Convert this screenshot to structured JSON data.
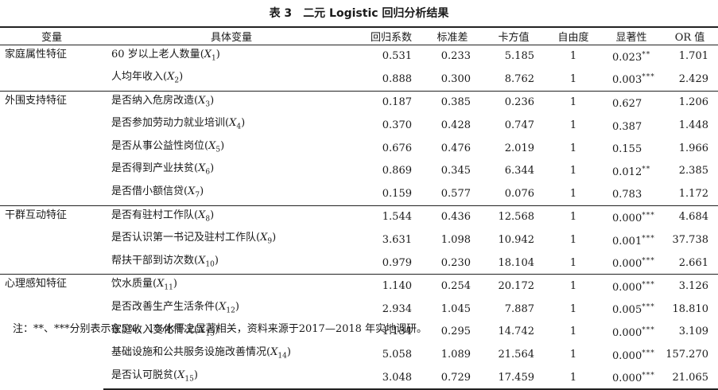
{
  "caption": {
    "label": "表 3",
    "title": "二元 Logistic 回归分析结果"
  },
  "headers": [
    "变量",
    "具体变量",
    "回归系数",
    "标准差",
    "卡方值",
    "自由度",
    "显著性",
    "OR 值"
  ],
  "groups": [
    {
      "name": "家庭属性特征",
      "rows": [
        {
          "label": "60 岁以上老人数量",
          "sub": "1",
          "b": "0.531",
          "se": "0.233",
          "chi": "5.185",
          "df": "1",
          "sig": "0.023",
          "stars": "**",
          "or": "1.701"
        },
        {
          "label": "人均年收入",
          "sub": "2",
          "b": "0.888",
          "se": "0.300",
          "chi": "8.762",
          "df": "1",
          "sig": "0.003",
          "stars": "***",
          "or": "2.429"
        }
      ]
    },
    {
      "name": "外围支持特征",
      "rows": [
        {
          "label": "是否纳入危房改造",
          "sub": "3",
          "b": "0.187",
          "se": "0.385",
          "chi": "0.236",
          "df": "1",
          "sig": "0.627",
          "stars": "",
          "or": "1.206"
        },
        {
          "label": "是否参加劳动力就业培训",
          "sub": "4",
          "b": "0.370",
          "se": "0.428",
          "chi": "0.747",
          "df": "1",
          "sig": "0.387",
          "stars": "",
          "or": "1.448"
        },
        {
          "label": "是否从事公益性岗位",
          "sub": "5",
          "b": "0.676",
          "se": "0.476",
          "chi": "2.019",
          "df": "1",
          "sig": "0.155",
          "stars": "",
          "or": "1.966"
        },
        {
          "label": "是否得到产业扶贫",
          "sub": "6",
          "b": "0.869",
          "se": "0.345",
          "chi": "6.344",
          "df": "1",
          "sig": "0.012",
          "stars": "**",
          "or": "2.385"
        },
        {
          "label": "是否借小额信贷",
          "sub": "7",
          "b": "0.159",
          "se": "0.577",
          "chi": "0.076",
          "df": "1",
          "sig": "0.783",
          "stars": "",
          "or": "1.172"
        }
      ]
    },
    {
      "name": "干群互动特征",
      "rows": [
        {
          "label": "是否有驻村工作队",
          "sub": "8",
          "b": "1.544",
          "se": "0.436",
          "chi": "12.568",
          "df": "1",
          "sig": "0.000",
          "stars": "***",
          "or": "4.684"
        },
        {
          "label": "是否认识第一书记及驻村工作队",
          "sub": "9",
          "b": "3.631",
          "se": "1.098",
          "chi": "10.942",
          "df": "1",
          "sig": "0.001",
          "stars": "***",
          "or": "37.738"
        },
        {
          "label": "帮扶干部到访次数",
          "sub": "10",
          "b": "0.979",
          "se": "0.230",
          "chi": "18.104",
          "df": "1",
          "sig": "0.000",
          "stars": "***",
          "or": "2.661"
        }
      ]
    },
    {
      "name": "心理感知特征",
      "rows": [
        {
          "label": "饮水质量",
          "sub": "11",
          "b": "1.140",
          "se": "0.254",
          "chi": "20.172",
          "df": "1",
          "sig": "0.000",
          "stars": "***",
          "or": "3.126"
        },
        {
          "label": "是否改善生产生活条件",
          "sub": "12",
          "b": "2.934",
          "se": "1.045",
          "chi": "7.887",
          "df": "1",
          "sig": "0.005",
          "stars": "***",
          "or": "18.810"
        },
        {
          "label": "家庭收入变化情况",
          "sub": "13",
          "b": "1.134",
          "se": "0.295",
          "chi": "14.742",
          "df": "1",
          "sig": "0.000",
          "stars": "***",
          "or": "3.109"
        },
        {
          "label": "基础设施和公共服务设施改善情况",
          "sub": "14",
          "b": "5.058",
          "se": "1.089",
          "chi": "21.564",
          "df": "1",
          "sig": "0.000",
          "stars": "***",
          "or": "157.270"
        },
        {
          "label": "是否认可脱贫",
          "sub": "15",
          "b": "3.048",
          "se": "0.729",
          "chi": "17.459",
          "df": "1",
          "sig": "0.000",
          "stars": "***",
          "or": "21.065"
        }
      ]
    }
  ],
  "note": "注：**、***分别表示在5%、1%水平上显著相关，资料来源于2017—2018 年实地调研。"
}
